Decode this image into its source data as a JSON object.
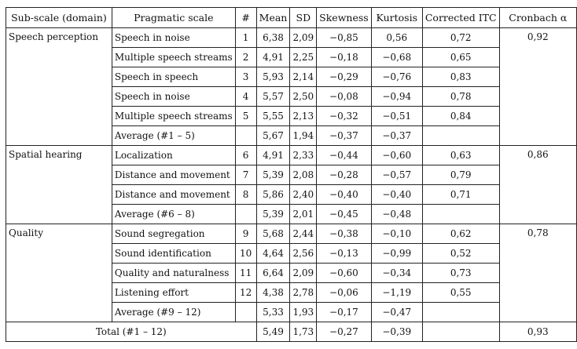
{
  "headers": [
    "Sub-scale (domain)",
    "Pragmatic scale",
    "#",
    "Mean",
    "SD",
    "Skewness",
    "Kurtosis",
    "Corrected ITC",
    "Cronbach α"
  ],
  "groups": [
    {
      "domain": "Speech perception",
      "alpha": "0,92",
      "rows": [
        {
          "scale": "Speech in noise",
          "num": "1",
          "mean": "6,38",
          "sd": "2,09",
          "skew": "−0,85",
          "kurt": "0,56",
          "itc": "0,72"
        },
        {
          "scale": "Multiple speech streams",
          "num": "2",
          "mean": "4,91",
          "sd": "2,25",
          "skew": "−0,18",
          "kurt": "−0,68",
          "itc": "0,65"
        },
        {
          "scale": "Speech in speech",
          "num": "3",
          "mean": "5,93",
          "sd": "2,14",
          "skew": "−0,29",
          "kurt": "−0,76",
          "itc": "0,83"
        },
        {
          "scale": "Speech in noise",
          "num": "4",
          "mean": "5,57",
          "sd": "2,50",
          "skew": "−0,08",
          "kurt": "−0,94",
          "itc": "0,78"
        },
        {
          "scale": "Multiple speech streams",
          "num": "5",
          "mean": "5,55",
          "sd": "2,13",
          "skew": "−0,32",
          "kurt": "−0,51",
          "itc": "0,84"
        },
        {
          "scale": "Average (#1 – 5)",
          "num": "",
          "mean": "5,67",
          "sd": "1,94",
          "skew": "−0,37",
          "kurt": "−0,37",
          "itc": ""
        }
      ]
    },
    {
      "domain": "Spatial hearing",
      "alpha": "0,86",
      "rows": [
        {
          "scale": "Localization",
          "num": "6",
          "mean": "4,91",
          "sd": "2,33",
          "skew": "−0,44",
          "kurt": "−0,60",
          "itc": "0,63"
        },
        {
          "scale": "Distance and movement",
          "num": "7",
          "mean": "5,39",
          "sd": "2,08",
          "skew": "−0,28",
          "kurt": "−0,57",
          "itc": "0,79"
        },
        {
          "scale": "Distance and movement",
          "num": "8",
          "mean": "5,86",
          "sd": "2,40",
          "skew": "−0,40",
          "kurt": "−0,40",
          "itc": "0,71"
        },
        {
          "scale": "Average (#6 – 8)",
          "num": "",
          "mean": "5,39",
          "sd": "2,01",
          "skew": "−0,45",
          "kurt": "−0,48",
          "itc": ""
        }
      ]
    },
    {
      "domain": "Quality",
      "alpha": "0,78",
      "rows": [
        {
          "scale": "Sound segregation",
          "num": "9",
          "mean": "5,68",
          "sd": "2,44",
          "skew": "−0,38",
          "kurt": "−0,10",
          "itc": "0,62"
        },
        {
          "scale": "Sound identification",
          "num": "10",
          "mean": "4,64",
          "sd": "2,56",
          "skew": "−0,13",
          "kurt": "−0,99",
          "itc": "0,52"
        },
        {
          "scale": "Quality and naturalness",
          "num": "11",
          "mean": "6,64",
          "sd": "2,09",
          "skew": "−0,60",
          "kurt": "−0,34",
          "itc": "0,73"
        },
        {
          "scale": "Listening effort",
          "num": "12",
          "mean": "4,38",
          "sd": "2,78",
          "skew": "−0,06",
          "kurt": "−1,19",
          "itc": "0,55"
        },
        {
          "scale": "Average (#9 – 12)",
          "num": "",
          "mean": "5,33",
          "sd": "1,93",
          "skew": "−0,17",
          "kurt": "−0,47",
          "itc": ""
        }
      ]
    }
  ],
  "total": {
    "label": "Total (#1 – 12)",
    "mean": "5,49",
    "sd": "1,73",
    "skew": "−0,27",
    "kurt": "−0,39",
    "itc": "",
    "alpha": "0,93"
  }
}
